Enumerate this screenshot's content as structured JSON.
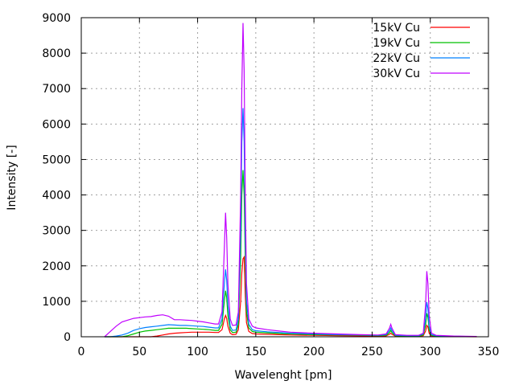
{
  "chart_data": {
    "type": "line",
    "title": "",
    "xlabel": "Wavelenght [pm]",
    "ylabel": "Intensity [-]",
    "xlim": [
      0,
      350
    ],
    "ylim": [
      0,
      9000
    ],
    "xticks": [
      0,
      50,
      100,
      150,
      200,
      250,
      300,
      350
    ],
    "yticks": [
      0,
      1000,
      2000,
      3000,
      4000,
      5000,
      6000,
      7000,
      8000,
      9000
    ],
    "grid": true,
    "legend_position": "top-right",
    "x": [
      20,
      25,
      30,
      35,
      40,
      45,
      50,
      55,
      60,
      65,
      70,
      75,
      80,
      85,
      90,
      95,
      100,
      105,
      110,
      115,
      118,
      121,
      123,
      124,
      125,
      126,
      128,
      130,
      133,
      135,
      137,
      138,
      139,
      140,
      141,
      142,
      144,
      147,
      150,
      160,
      170,
      180,
      200,
      220,
      240,
      255,
      262,
      265,
      266,
      267,
      270,
      280,
      290,
      294,
      296,
      297,
      298,
      299,
      301,
      305,
      320,
      340
    ],
    "series": [
      {
        "name": "15kV Cu",
        "color": "#ff0000",
        "values": [
          0,
          0,
          0,
          0,
          0,
          0,
          0,
          0,
          0,
          20,
          50,
          80,
          100,
          110,
          120,
          130,
          130,
          130,
          130,
          120,
          120,
          200,
          500,
          600,
          520,
          300,
          100,
          60,
          70,
          200,
          1000,
          1800,
          2200,
          2250,
          1200,
          400,
          150,
          90,
          80,
          70,
          60,
          50,
          40,
          30,
          25,
          20,
          25,
          70,
          100,
          70,
          20,
          15,
          15,
          30,
          160,
          320,
          280,
          100,
          20,
          10,
          5,
          0
        ]
      },
      {
        "name": "19kV Cu",
        "color": "#00c000",
        "values": [
          0,
          0,
          0,
          0,
          30,
          80,
          130,
          160,
          180,
          200,
          220,
          240,
          240,
          240,
          240,
          230,
          220,
          210,
          200,
          180,
          180,
          350,
          1000,
          1300,
          1100,
          600,
          200,
          120,
          130,
          350,
          2200,
          4000,
          4700,
          4000,
          2200,
          700,
          250,
          150,
          130,
          110,
          90,
          80,
          60,
          50,
          40,
          30,
          40,
          120,
          180,
          120,
          30,
          20,
          20,
          50,
          330,
          660,
          550,
          200,
          40,
          20,
          10,
          5
        ]
      },
      {
        "name": "22kV Cu",
        "color": "#0080ff",
        "values": [
          0,
          0,
          20,
          50,
          100,
          180,
          230,
          260,
          280,
          300,
          320,
          340,
          330,
          320,
          320,
          310,
          300,
          290,
          270,
          250,
          250,
          500,
          1500,
          1900,
          1600,
          900,
          300,
          180,
          190,
          500,
          3000,
          5500,
          6450,
          5500,
          3000,
          1000,
          350,
          200,
          170,
          140,
          120,
          100,
          80,
          60,
          50,
          40,
          60,
          180,
          250,
          180,
          40,
          30,
          30,
          80,
          500,
          980,
          800,
          300,
          60,
          30,
          15,
          5
        ]
      },
      {
        "name": "30kV Cu",
        "color": "#c000ff",
        "values": [
          0,
          150,
          300,
          420,
          470,
          520,
          540,
          560,
          570,
          600,
          620,
          580,
          480,
          480,
          470,
          460,
          440,
          420,
          390,
          360,
          360,
          700,
          2500,
          3500,
          2800,
          1500,
          500,
          320,
          330,
          700,
          4000,
          7000,
          8850,
          7500,
          4000,
          1500,
          500,
          300,
          250,
          200,
          160,
          130,
          100,
          80,
          60,
          50,
          80,
          250,
          350,
          250,
          60,
          40,
          40,
          100,
          900,
          1850,
          1500,
          600,
          100,
          40,
          20,
          10
        ]
      }
    ]
  }
}
